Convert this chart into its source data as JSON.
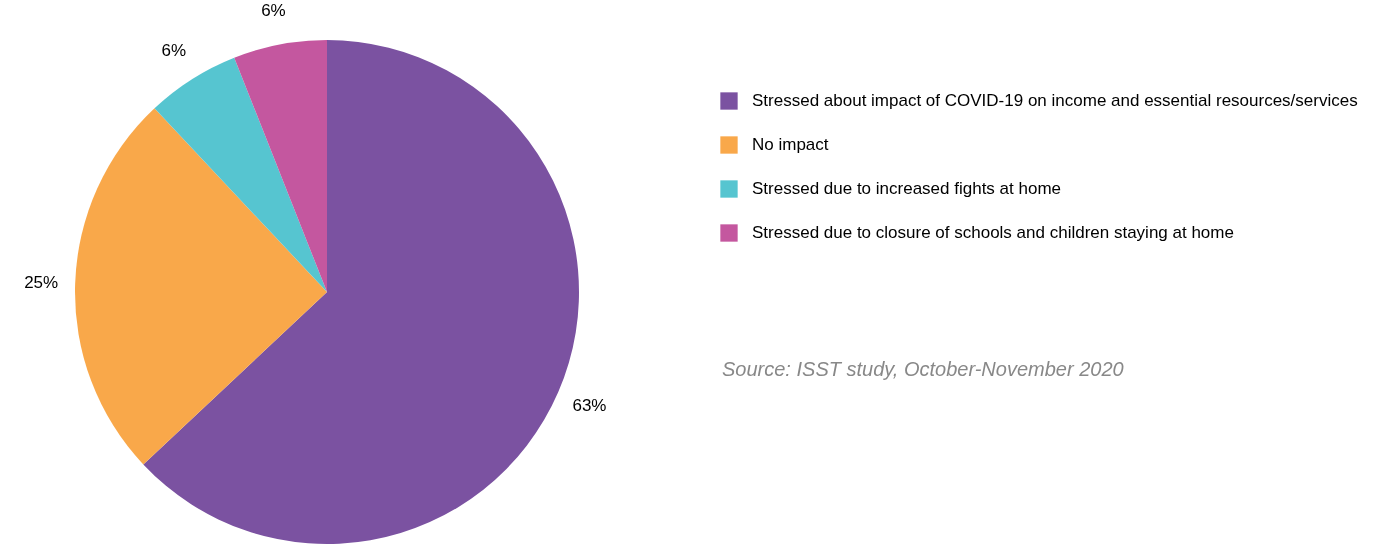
{
  "chart_data": {
    "type": "pie",
    "categories": [
      "Stressed about impact of COVID-19 on income and essential resources/services",
      "No impact",
      "Stressed due to increased fights at home",
      "Stressed due to closure of schools and children staying at home"
    ],
    "values": [
      63,
      25,
      6,
      6
    ],
    "colors": [
      "#7b52a1",
      "#f9a84a",
      "#56c5d0",
      "#c4579f"
    ],
    "value_labels": [
      "63%",
      "25%",
      "6%",
      "6%"
    ],
    "legend": "right",
    "annotations": [
      "Source: ISST study, October-November 2020"
    ]
  }
}
